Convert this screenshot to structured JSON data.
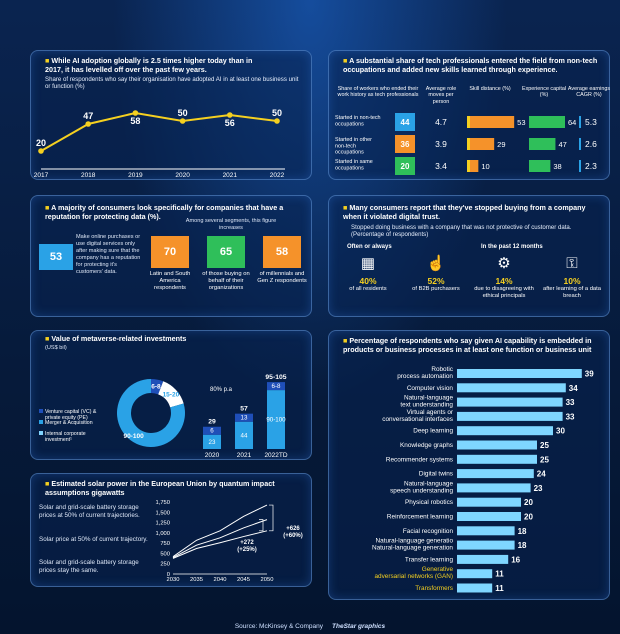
{
  "footer": {
    "source": "Source: McKinsey & Company",
    "credit": "TheStar graphics"
  },
  "p1": {
    "title": "While AI adoption globally is 2.5 times higher today than in 2017, it has levelled off over the past few years.",
    "subtitle": "Share of respondents who say their organisation have adopted AI in at least one business unit or function (%)",
    "chart_data": {
      "type": "line",
      "x": [
        "2017",
        "2018",
        "2019",
        "2020",
        "2021",
        "2022"
      ],
      "values": [
        20,
        47,
        58,
        50,
        56,
        50
      ],
      "ylim": [
        0,
        70
      ]
    }
  },
  "p2": {
    "title": "A substantial share of tech professionals entered the field from non-tech occupations and added new skills learned through experience.",
    "headers": [
      "Share of workers who ended their work history as tech professionals",
      "Average role moves per person",
      "Skill distance (%)",
      "Experience capital (%)",
      "Average earnings CAGR (%)"
    ],
    "chart_data": {
      "type": "table",
      "rows": [
        {
          "label": "Started in non-tech occupations",
          "share": 44,
          "moves": "4.7",
          "skill": 53,
          "experience": 64,
          "cagr": "5.3"
        },
        {
          "label": "Started in other non-tech occupations",
          "share": 36,
          "moves": "3.9",
          "skill": 29,
          "experience": 47,
          "cagr": "2.6"
        },
        {
          "label": "Started in same occupations",
          "share": 20,
          "moves": "3.4",
          "skill": 10,
          "experience": 38,
          "cagr": "2.3"
        }
      ]
    },
    "colors": {
      "share": [
        "#2aa2e6",
        "#f5922a",
        "#2fbf5a"
      ]
    }
  },
  "p3": {
    "title": "A majority of consumers look specifically for companies that have a reputation for protecting data (%).",
    "main_value": "53",
    "main_text": "Make online purchases or use digital services only after making sure that the company has a reputation for protecting it's customers' data.",
    "segments_heading": "Among several segments, this figure increases",
    "segments": [
      {
        "value": "70",
        "label": "Latin and South America respondents"
      },
      {
        "value": "65",
        "label": "of those buying on behalf of their organizations"
      },
      {
        "value": "58",
        "label": "of millennials and Gen Z respondents"
      }
    ]
  },
  "p4": {
    "title": "Many consumers report that they've stopped buying from a company when it violated digital trust.",
    "subtitle": "Stopped doing business with a company that was not protective of customer data. (Percentage of respondents)",
    "often_label": "Often or always",
    "past_label": "In the past 12 months",
    "stats": [
      {
        "value": "40%",
        "label": "of all residents",
        "icon": "people-grid-icon"
      },
      {
        "value": "52%",
        "label": "of B2B purchasers",
        "icon": "touch-icon"
      },
      {
        "value": "14%",
        "label": "due to disagreeing with ethical principals",
        "icon": "gears-icon"
      },
      {
        "value": "10%",
        "label": "after learning of a data breach",
        "icon": "padlock-icon"
      }
    ]
  },
  "p5": {
    "title": "Value of metaverse-related investments",
    "unit": "(US$ bil)",
    "legend": [
      "Venture capital (VC) & private equity (PE)",
      "Merger & Acquisition",
      "Internal corporate investment¹"
    ],
    "growth": "80% p.a",
    "colors": {
      "vc": "#1f4fb8",
      "ma": "#2aa2e6",
      "internal": "#7fd3ff"
    },
    "chart_data": {
      "type": "bar",
      "donut": {
        "slices": [
          {
            "label": "6-8",
            "value": 7
          },
          {
            "label": "15-20",
            "value": 17.5
          },
          {
            "label": "90-100",
            "value": 95
          }
        ]
      },
      "categories": [
        "2020",
        "2021",
        "2022TD"
      ],
      "totals": [
        "29",
        "57",
        "95-105"
      ],
      "series": [
        {
          "name": "Internal corporate investment",
          "values": [
            23,
            44,
            95
          ],
          "labels": [
            "23",
            "44",
            "90-100"
          ]
        },
        {
          "name": "Merger & Acquisition",
          "values": [
            0,
            0,
            0
          ],
          "labels": [
            "",
            "",
            ""
          ]
        },
        {
          "name": "Venture capital (VC) & private equity (PE)",
          "values": [
            6,
            13,
            7
          ],
          "labels": [
            "6",
            "13",
            "6-8"
          ]
        }
      ]
    }
  },
  "p6": {
    "title": "Estimated solar power in the European Union by quantum impact assumptions gigawatts",
    "lines": [
      "Solar and grid-scale battery storage prices at 50% of current trajectories.",
      "Solar price at 50% of current trajectory.",
      "Solar and grid-scale battery storage prices stay the same."
    ],
    "ann1": "+626 (+60%)",
    "ann2": "+272 (+25%)",
    "chart_data": {
      "type": "line",
      "x": [
        2030,
        2035,
        2040,
        2045,
        2050
      ],
      "yticks": [
        0,
        250,
        500,
        750,
        1000,
        1250,
        1500,
        1750
      ],
      "ylim": [
        0,
        1750
      ],
      "series": [
        {
          "name": "Solar and grid-scale battery storage prices at 50% of current trajectories.",
          "values": [
            420,
            820,
            1050,
            1400,
            1676
          ]
        },
        {
          "name": "Solar price at 50% of current trajectory.",
          "values": [
            400,
            700,
            880,
            1120,
            1322
          ]
        },
        {
          "name": "Solar and grid-scale battery storage prices stay the same.",
          "values": [
            380,
            620,
            760,
            910,
            1050
          ]
        }
      ]
    }
  },
  "p7": {
    "title": "Percentage of respondents who say given AI capability is embedded in products or business processes in at least one function or business unit",
    "chart_data": {
      "type": "bar",
      "categories": [
        "Robotic process automation",
        "Computer vision",
        "Natural-language text understanding",
        "Virtual agents or conversational interfaces",
        "Deep learning",
        "Knowledge graphs",
        "Recommender systems",
        "Digital twins",
        "Natural-language speech understanding",
        "Physical robotics",
        "Reinforcement learning",
        "Facial recognition",
        "Natural-language generation",
        "Transfer learning",
        "Generative adversarial networks (GAN)",
        "Transformers"
      ],
      "values": [
        39,
        34,
        33,
        33,
        30,
        25,
        25,
        24,
        23,
        20,
        20,
        18,
        18,
        16,
        11,
        11
      ],
      "highlight": [
        false,
        false,
        false,
        false,
        false,
        false,
        false,
        false,
        false,
        false,
        false,
        false,
        false,
        false,
        true,
        true
      ]
    }
  }
}
